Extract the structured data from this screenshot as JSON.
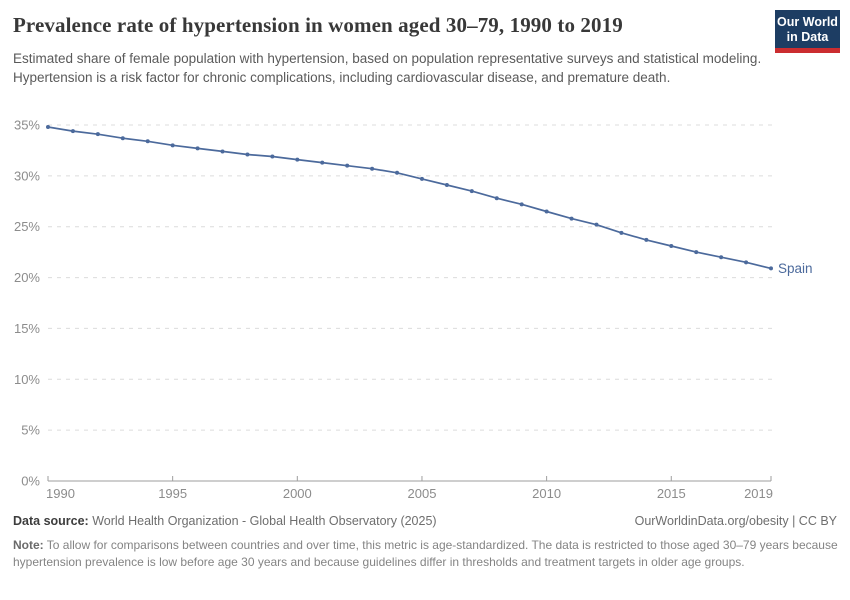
{
  "header": {
    "title": "Prevalence rate of hypertension in women aged 30–79, 1990 to 2019",
    "subtitle": "Estimated share of female population with hypertension, based on population representative surveys and statistical modeling. Hypertension is a risk factor for chronic complications, including cardiovascular disease, and premature death.",
    "logo": {
      "line1": "Our World",
      "line2": "in Data",
      "bg_color": "#1d3d63",
      "accent_color": "#cb2d30"
    }
  },
  "chart_data": {
    "type": "line",
    "title": "Prevalence rate of hypertension in women aged 30–79, 1990 to 2019",
    "xlabel": "",
    "ylabel": "",
    "xlim": [
      1990,
      2019
    ],
    "ylim": [
      0,
      35
    ],
    "grid": "horizontal-dashed",
    "legend": "end-of-line-label",
    "x": [
      1990,
      1991,
      1992,
      1993,
      1994,
      1995,
      1996,
      1997,
      1998,
      1999,
      2000,
      2001,
      2002,
      2003,
      2004,
      2005,
      2006,
      2007,
      2008,
      2009,
      2010,
      2011,
      2012,
      2013,
      2014,
      2015,
      2016,
      2017,
      2018,
      2019
    ],
    "series": [
      {
        "name": "Spain",
        "color": "#4C6A9C",
        "values": [
          34.8,
          34.4,
          34.1,
          33.7,
          33.4,
          33.0,
          32.7,
          32.4,
          32.1,
          31.9,
          31.6,
          31.3,
          31.0,
          30.7,
          30.3,
          29.7,
          29.1,
          28.5,
          27.8,
          27.2,
          26.5,
          25.8,
          25.2,
          24.4,
          23.7,
          23.1,
          22.5,
          22.0,
          21.5,
          20.9
        ]
      }
    ],
    "y_ticks": [
      {
        "value": 0,
        "label": "0%"
      },
      {
        "value": 5,
        "label": "5%"
      },
      {
        "value": 10,
        "label": "10%"
      },
      {
        "value": 15,
        "label": "15%"
      },
      {
        "value": 20,
        "label": "20%"
      },
      {
        "value": 25,
        "label": "25%"
      },
      {
        "value": 30,
        "label": "30%"
      },
      {
        "value": 35,
        "label": "35%"
      }
    ],
    "x_ticks": [
      {
        "value": 1990,
        "label": "1990"
      },
      {
        "value": 1995,
        "label": "1995"
      },
      {
        "value": 2000,
        "label": "2000"
      },
      {
        "value": 2005,
        "label": "2005"
      },
      {
        "value": 2010,
        "label": "2010"
      },
      {
        "value": 2015,
        "label": "2015"
      },
      {
        "value": 2019,
        "label": "2019"
      }
    ],
    "colors": {
      "gridline": "#dcdcdc",
      "axis": "#9e9e9e",
      "tick_label": "#8c8c8c"
    }
  },
  "footer": {
    "datasource_label": "Data source:",
    "datasource_value": " World Health Organization - Global Health Observatory (2025)",
    "link": "OurWorldinData.org/obesity | CC BY",
    "note_label": "Note:",
    "note_text": " To allow for comparisons between countries and over time, this metric is age-standardized. The data is restricted to those aged 30–79 years because hypertension prevalence is low before age 30 years and because guidelines differ in thresholds and treatment targets in older age groups."
  }
}
